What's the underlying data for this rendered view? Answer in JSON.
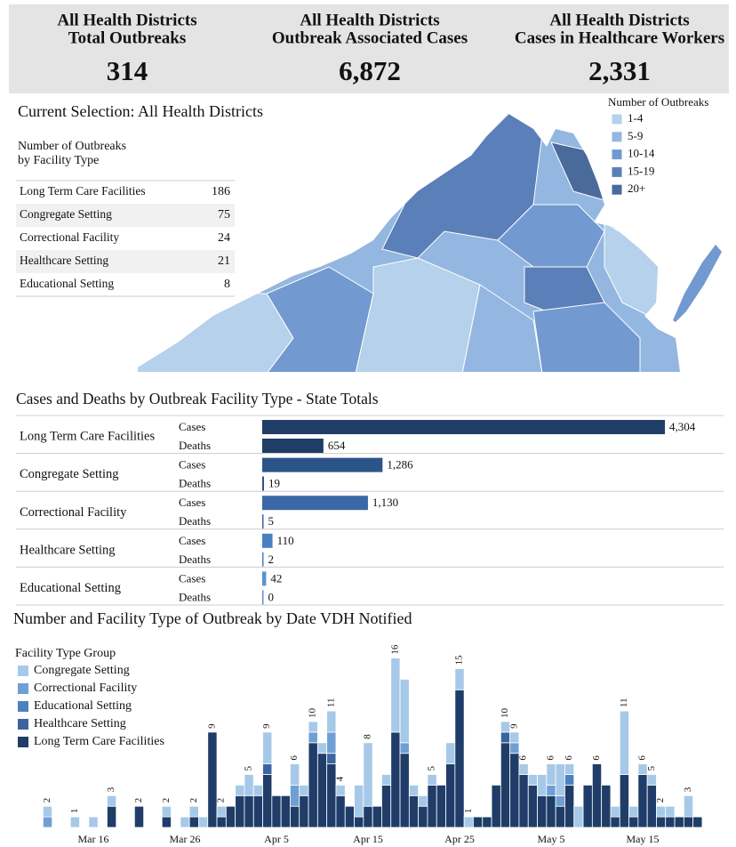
{
  "kpis": [
    {
      "title": [
        "All Health Districts",
        "Total Outbreaks"
      ],
      "value": "314"
    },
    {
      "title": [
        "All Health Districts",
        "Outbreak Associated Cases"
      ],
      "value": "6,872"
    },
    {
      "title": [
        "All Health Districts",
        "Cases in Healthcare Workers"
      ],
      "value": "2,331"
    }
  ],
  "selection": "Current Selection: All Health Districts",
  "facility_table": {
    "title": [
      "Number of Outbreaks",
      "by Facility Type"
    ],
    "rows": [
      [
        "Long Term Care Facilities",
        186
      ],
      [
        "Congregate Setting",
        75
      ],
      [
        "Correctional Facility",
        24
      ],
      [
        "Healthcare Setting",
        21
      ],
      [
        "Educational Setting",
        8
      ]
    ]
  },
  "map_legend": {
    "title": "Number of Outbreaks",
    "items": [
      {
        "label": "1-4",
        "color": "#b5d1eb"
      },
      {
        "label": "5-9",
        "color": "#93b7e0"
      },
      {
        "label": "10-14",
        "color": "#7299d0"
      },
      {
        "label": "15-19",
        "color": "#5b7fb8"
      },
      {
        "label": "20+",
        "color": "#4a6a9c"
      }
    ]
  },
  "chart_data": [
    {
      "type": "barh",
      "title": "Cases and Deaths by Outbreak Facility Type - State Totals",
      "categories": [
        "Long Term Care Facilities",
        "Congregate Setting",
        "Correctional Facility",
        "Healthcare Setting",
        "Educational Setting"
      ],
      "colors": [
        "#1f3d66",
        "#2c5488",
        "#3a67a6",
        "#4a80c2",
        "#5a92cf"
      ],
      "series": [
        {
          "name": "Cases",
          "values": [
            4304,
            1286,
            1130,
            110,
            42
          ],
          "value_labels": [
            "4,304",
            "1,286",
            "1,130",
            "110",
            "42"
          ]
        },
        {
          "name": "Deaths",
          "values": [
            654,
            19,
            5,
            2,
            0
          ]
        }
      ]
    },
    {
      "type": "stacked_bar",
      "title": "Number and Facility Type of Outbreak by Date VDH Notified",
      "legend_title": "Facility Type Group",
      "categories": [
        null,
        null,
        null,
        null,
        null,
        "Mar 16",
        null,
        null,
        null,
        null,
        null,
        null,
        null,
        null,
        null,
        "Mar 26",
        null,
        null,
        null,
        null,
        null,
        null,
        null,
        null,
        null,
        "Apr 5",
        null,
        null,
        null,
        null,
        null,
        null,
        null,
        null,
        null,
        "Apr 15",
        null,
        null,
        null,
        null,
        null,
        null,
        null,
        null,
        null,
        "Apr 25",
        null,
        null,
        null,
        null,
        null,
        null,
        null,
        null,
        null,
        "May 5",
        null,
        null,
        null,
        null,
        null,
        null,
        null,
        null,
        null,
        "May 15",
        null,
        null,
        null,
        null,
        null,
        null
      ],
      "ylim": [
        0,
        17
      ],
      "series": [
        {
          "name": "Congregate Setting",
          "color": "#a7c9e8",
          "values": [
            1,
            0,
            0,
            1,
            0,
            1,
            0,
            1,
            0,
            0,
            0,
            0,
            0,
            1,
            0,
            1,
            1,
            1,
            0,
            1,
            0,
            1,
            2,
            1,
            3,
            0,
            0,
            2,
            1,
            1,
            1,
            2,
            1,
            0,
            3,
            6,
            0,
            1,
            7,
            6,
            1,
            1,
            1,
            0,
            2,
            2,
            1,
            0,
            0,
            0,
            1,
            1,
            1,
            1,
            2,
            2,
            3,
            1,
            2,
            0,
            0,
            0,
            1,
            6,
            1,
            1,
            1,
            1,
            1,
            0,
            2,
            0
          ]
        },
        {
          "name": "Correctional Facility",
          "color": "#6f9fd4",
          "values": [
            1,
            0,
            0,
            0,
            0,
            0,
            0,
            0,
            0,
            0,
            0,
            0,
            0,
            0,
            0,
            0,
            0,
            0,
            0,
            0,
            0,
            0,
            0,
            0,
            0,
            0,
            0,
            2,
            0,
            1,
            0,
            2,
            0,
            0,
            0,
            0,
            0,
            0,
            0,
            1,
            0,
            0,
            0,
            0,
            0,
            0,
            0,
            0,
            0,
            0,
            0,
            1,
            0,
            0,
            0,
            1,
            1,
            0,
            0,
            0,
            0,
            0,
            0,
            0,
            0,
            0,
            0,
            0,
            0,
            0,
            0,
            0
          ]
        },
        {
          "name": "Educational Setting",
          "color": "#4e81c0",
          "values": [
            0,
            0,
            0,
            0,
            0,
            0,
            0,
            0,
            0,
            0,
            0,
            0,
            0,
            0,
            0,
            0,
            0,
            0,
            0,
            0,
            0,
            0,
            0,
            0,
            0,
            0,
            0,
            0,
            0,
            0,
            0,
            0,
            0,
            0,
            0,
            0,
            0,
            0,
            0,
            0,
            0,
            0,
            0,
            0,
            0,
            0,
            0,
            0,
            0,
            0,
            0,
            0,
            0,
            0,
            0,
            0,
            0,
            1,
            0,
            0,
            0,
            0,
            0,
            0,
            0,
            0,
            0,
            0,
            0,
            0,
            0,
            0
          ]
        },
        {
          "name": "Healthcare Setting",
          "color": "#3b64a0",
          "values": [
            0,
            0,
            0,
            0,
            0,
            0,
            0,
            0,
            0,
            0,
            0,
            0,
            0,
            0,
            0,
            0,
            0,
            0,
            0,
            0,
            0,
            0,
            0,
            0,
            1,
            0,
            0,
            0,
            0,
            0,
            0,
            1,
            0,
            0,
            0,
            0,
            0,
            0,
            0,
            0,
            0,
            0,
            0,
            0,
            0,
            0,
            0,
            0,
            0,
            0,
            1,
            0,
            0,
            0,
            0,
            0,
            0,
            0,
            0,
            0,
            0,
            0,
            0,
            0,
            0,
            0,
            0,
            0,
            0,
            0,
            0,
            0
          ]
        },
        {
          "name": "Long Term Care Facilities",
          "color": "#1f3d68",
          "values": [
            0,
            0,
            0,
            0,
            0,
            0,
            0,
            2,
            0,
            0,
            2,
            0,
            0,
            1,
            0,
            0,
            1,
            0,
            9,
            1,
            2,
            3,
            3,
            3,
            5,
            3,
            3,
            2,
            3,
            8,
            7,
            6,
            3,
            2,
            1,
            2,
            2,
            4,
            9,
            7,
            3,
            2,
            4,
            4,
            6,
            13,
            0,
            1,
            1,
            4,
            8,
            7,
            5,
            4,
            3,
            3,
            2,
            4,
            0,
            4,
            6,
            4,
            1,
            5,
            1,
            5,
            4,
            1,
            1,
            1,
            1,
            1
          ]
        }
      ],
      "totals": [
        2,
        null,
        null,
        1,
        null,
        null,
        null,
        3,
        null,
        null,
        2,
        null,
        null,
        2,
        null,
        null,
        2,
        null,
        9,
        2,
        null,
        null,
        5,
        null,
        9,
        null,
        null,
        6,
        null,
        10,
        null,
        11,
        4,
        null,
        null,
        8,
        null,
        null,
        16,
        null,
        null,
        null,
        5,
        null,
        null,
        15,
        1,
        null,
        null,
        null,
        10,
        9,
        6,
        null,
        null,
        6,
        null,
        6,
        null,
        null,
        6,
        null,
        null,
        11,
        null,
        6,
        5,
        2,
        null,
        null,
        3,
        null
      ]
    }
  ]
}
